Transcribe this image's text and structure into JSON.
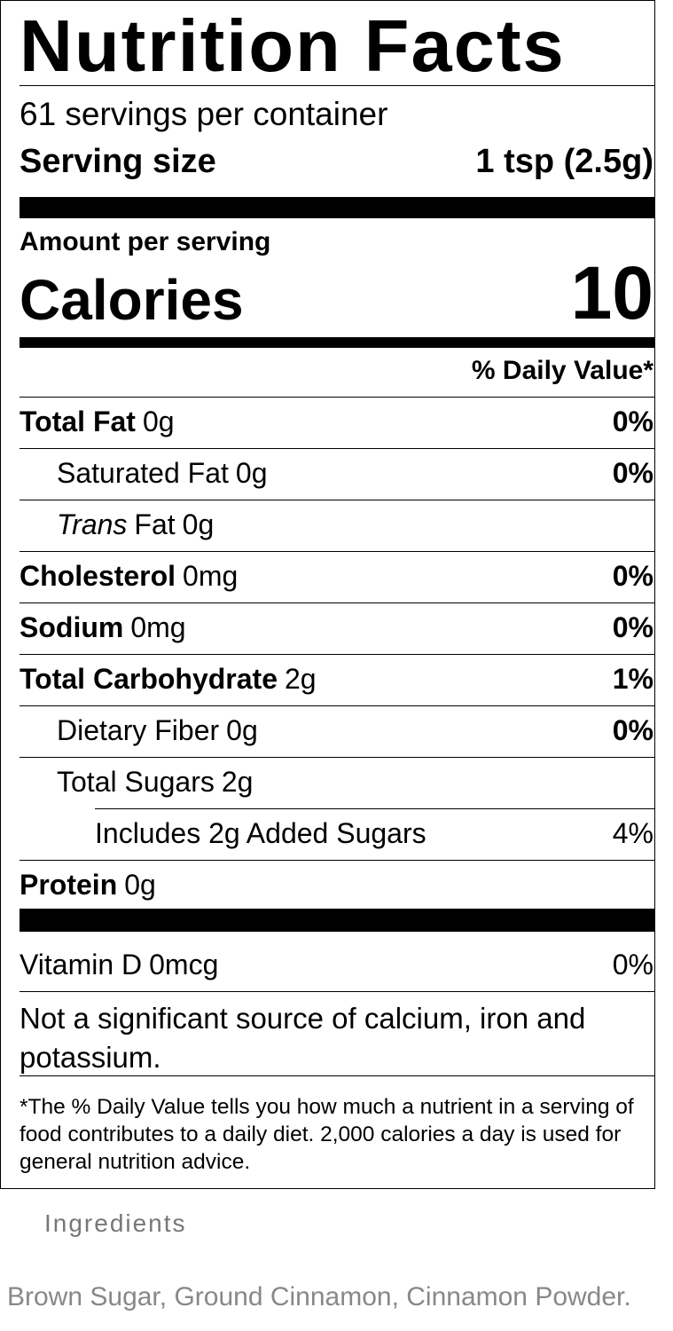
{
  "label": {
    "title": "Nutrition Facts",
    "servings": "61 servings per container",
    "serving_size_label": "Serving size",
    "serving_size": "1 tsp (2.5g)",
    "amount_per_serving": "Amount per serving",
    "calories_label": "Calories",
    "calories": "10",
    "dv_header": "% Daily Value*",
    "nutrients": [
      {
        "name": "Total Fat",
        "amount": "0g",
        "dv": "0%",
        "sub": [
          {
            "name": "Saturated Fat",
            "amount": "0g",
            "dv": "0%"
          },
          {
            "name_italic": "Trans",
            "name": "Fat",
            "amount": "0g"
          }
        ]
      },
      {
        "name": "Cholesterol",
        "amount": "0mg",
        "dv": "0%"
      },
      {
        "name": "Sodium",
        "amount": "0mg",
        "dv": "0%"
      },
      {
        "name": "Total Carbohydrate",
        "amount": "2g",
        "dv": "1%",
        "sub": [
          {
            "name": "Dietary Fiber",
            "amount": "0g",
            "dv": "0%"
          },
          {
            "name": "Total Sugars",
            "amount": "2g",
            "sub": [
              {
                "name": "Includes 2g Added Sugars",
                "dv": "4%"
              }
            ]
          }
        ]
      },
      {
        "name": "Protein",
        "amount": "0g"
      }
    ],
    "vitamins": [
      {
        "name": "Vitamin D",
        "amount": "0mcg",
        "dv": "0%"
      }
    ],
    "note": "Not a significant source of calcium, iron and potassium.",
    "footnote": "*The % Daily Value tells you how much a nutrient in a serving of food contributes to a daily diet. 2,000 calories a day is used for general nutrition advice."
  },
  "ingredients": {
    "heading": "Ingredients",
    "text": "Brown Sugar, Ground Cinnamon, Cinnamon Powder."
  }
}
